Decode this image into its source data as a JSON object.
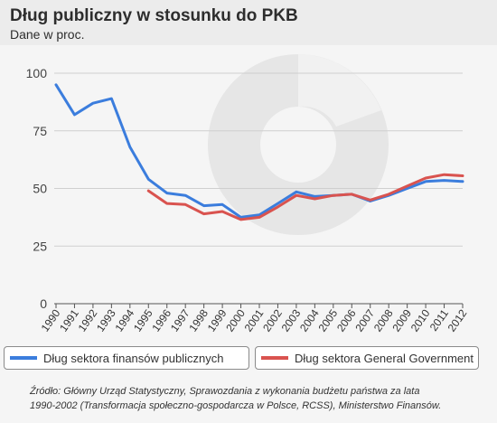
{
  "header": {
    "title": "Dług publiczny w stosunku do PKB",
    "subtitle": "Dane w  proc."
  },
  "source": {
    "line1": "Źródło: Główny Urząd Statystyczny, Sprawozdania z wykonania budżetu państwa za lata",
    "line2": "1990-2002 (Transformacja społeczno-gospodarcza w Polsce, RCSS), Ministerstwo Finansów."
  },
  "colors": {
    "series1": "#3b7ddd",
    "series2": "#d9534f",
    "grid": "#cfcfcf",
    "axis": "#555555"
  },
  "chart_data": {
    "type": "line",
    "title": "Dług publiczny w stosunku do PKB",
    "subtitle": "Dane w  proc.",
    "xlabel": "",
    "ylabel": "",
    "ylim": [
      0,
      100
    ],
    "yticks": [
      "0",
      "25",
      "50",
      "75",
      "100"
    ],
    "categories": [
      "1990",
      "1991",
      "1992",
      "1993",
      "1994",
      "1995",
      "1996",
      "1997",
      "1998",
      "1999",
      "2000",
      "2001",
      "2002",
      "2003",
      "2004",
      "2005",
      "2006",
      "2007",
      "2008",
      "2009",
      "2010",
      "2011",
      "2012"
    ],
    "grid": true,
    "legend_position": "bottom",
    "series": [
      {
        "name": "Dług sektora finansów publicznych",
        "color": "#3b7ddd",
        "values": [
          95,
          82,
          87,
          89,
          68,
          54,
          48,
          47,
          42.5,
          43,
          37.5,
          38.5,
          43.5,
          48.5,
          46.5,
          47,
          47.5,
          44.5,
          47,
          50,
          53,
          53.5,
          53
        ]
      },
      {
        "name": "Dług sektora General Government",
        "color": "#d9534f",
        "values": [
          null,
          null,
          null,
          null,
          null,
          49,
          43.5,
          43,
          39,
          40,
          36.5,
          37.5,
          42,
          47,
          45.5,
          47,
          47.5,
          45,
          47.5,
          51,
          54.5,
          56,
          55.5
        ]
      }
    ]
  }
}
